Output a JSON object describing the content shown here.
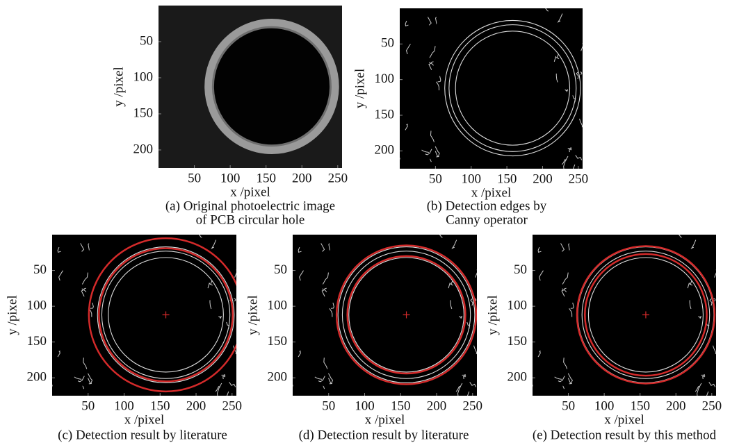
{
  "chart_data": [
    {
      "type": "image",
      "xlabel": "x /pixel",
      "ylabel": "y /pixel",
      "caption": [
        "(a) Original photoelectric image",
        "of PCB circular hole"
      ],
      "xlim": [
        0,
        256
      ],
      "ylim": [
        0,
        225
      ],
      "y_reversed": true,
      "xticks": [
        50,
        100,
        150,
        200,
        250
      ],
      "yticks": [
        50,
        100,
        150,
        200
      ]
    },
    {
      "type": "image",
      "xlabel": "x /pixel",
      "ylabel": "y /pixel",
      "caption": [
        "(b) Detection edges by",
        "Canny operator"
      ],
      "xlim": [
        0,
        256
      ],
      "ylim": [
        0,
        225
      ],
      "y_reversed": true,
      "xticks": [
        50,
        100,
        150,
        200,
        250
      ],
      "yticks": [
        50,
        100,
        150,
        200
      ]
    },
    {
      "type": "image",
      "xlabel": "x /pixel",
      "ylabel": "y /pixel",
      "caption": [
        "(c) Detection result by literature"
      ],
      "xlim": [
        0,
        256
      ],
      "ylim": [
        0,
        225
      ],
      "y_reversed": true,
      "xticks": [
        50,
        100,
        150,
        200,
        250
      ],
      "yticks": [
        50,
        100,
        150,
        200
      ]
    },
    {
      "type": "image",
      "xlabel": "x /pixel",
      "ylabel": "y /pixel",
      "caption": [
        "(d) Detection result by literature"
      ],
      "xlim": [
        0,
        256
      ],
      "ylim": [
        0,
        225
      ],
      "y_reversed": true,
      "xticks": [
        50,
        100,
        150,
        200,
        250
      ],
      "yticks": [
        50,
        100,
        150,
        200
      ]
    },
    {
      "type": "image",
      "xlabel": "x /pixel",
      "ylabel": "y /pixel",
      "caption": [
        "(e) Detection result by this method"
      ],
      "xlim": [
        0,
        256
      ],
      "ylim": [
        0,
        225
      ],
      "y_reversed": true,
      "xticks": [
        50,
        100,
        150,
        200,
        250
      ],
      "yticks": [
        50,
        100,
        150,
        200
      ]
    }
  ]
}
